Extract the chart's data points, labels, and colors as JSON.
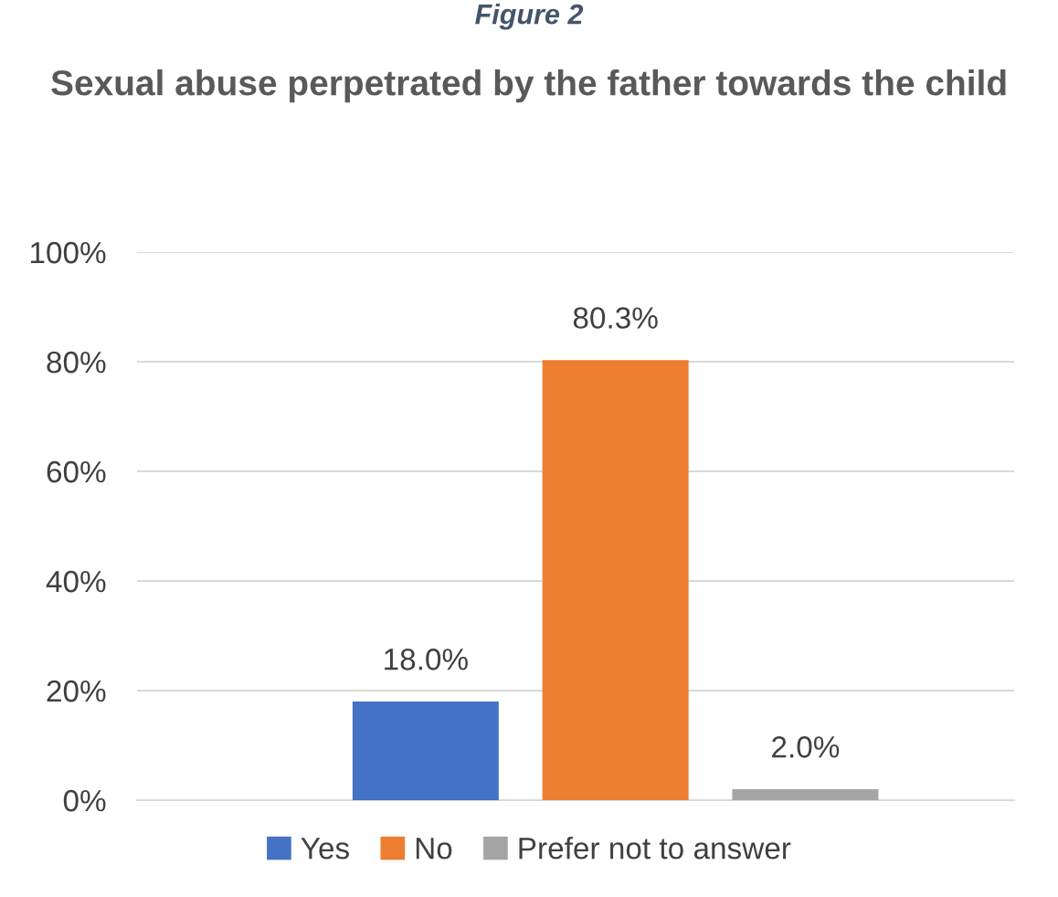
{
  "chart_data": {
    "type": "bar",
    "title": "Sexual abuse perpetrated by the father towards the child",
    "annotations": [
      "Figure 2"
    ],
    "categories": [
      null,
      null,
      null
    ],
    "series": [
      {
        "name": "Yes",
        "color": "#4472c4",
        "values": [
          18.0,
          null,
          null
        ],
        "value_labels": [
          "18.0%",
          null,
          null
        ]
      },
      {
        "name": "No",
        "color": "#ed7d31",
        "values": [
          null,
          80.3,
          null
        ],
        "value_labels": [
          null,
          "80.3%",
          null
        ]
      },
      {
        "name": "Prefer not to answer",
        "color": "#a5a5a5",
        "values": [
          null,
          null,
          2.0
        ],
        "value_labels": [
          null,
          null,
          "2.0%"
        ]
      }
    ],
    "ylim": [
      0,
      100
    ],
    "yticks": [
      {
        "value": 0,
        "label": "0%"
      },
      {
        "value": 20,
        "label": "20%"
      },
      {
        "value": 40,
        "label": "40%"
      },
      {
        "value": 60,
        "label": "60%"
      },
      {
        "value": 80,
        "label": "80%"
      },
      {
        "value": 100,
        "label": "100%"
      }
    ],
    "grid": "y",
    "legend": "bottom"
  }
}
